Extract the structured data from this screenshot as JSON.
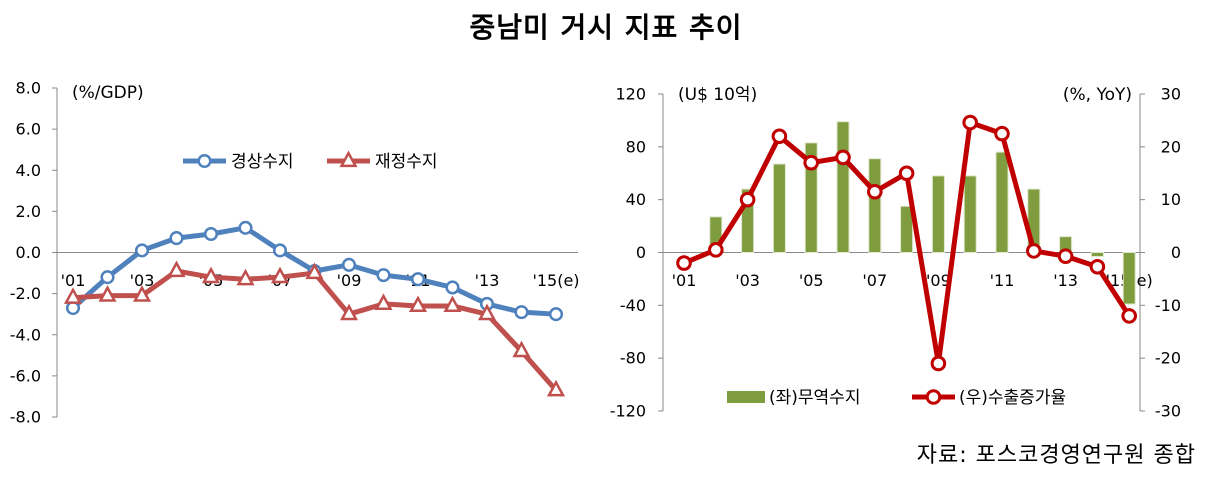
{
  "title": "중남미 거시 지표 추이",
  "source": "자료: 포스코경영연구원 종합",
  "chart_data": [
    {
      "type": "line",
      "unit_label": "(%/GDP)",
      "x": [
        2001,
        2002,
        2003,
        2004,
        2005,
        2006,
        2007,
        2008,
        2009,
        2010,
        2011,
        2012,
        2013,
        2014,
        2015
      ],
      "x_tick_values": [
        2001,
        2003,
        2005,
        2007,
        2009,
        2011,
        2013,
        2015
      ],
      "x_tick_labels": [
        "'01",
        "'03",
        "'05",
        "'07",
        "'09",
        "'11",
        "'13",
        "'15(e)"
      ],
      "ylim": [
        -8,
        8
      ],
      "y_tick_labels": [
        "8.0",
        "6.0",
        "4.0",
        "2.0",
        "0.0",
        "-2.0",
        "-4.0",
        "-6.0",
        "-8.0"
      ],
      "grid": false,
      "legend": "top-center",
      "series": [
        {
          "name": "경상수지",
          "color": "#4f81bd",
          "marker": "circle",
          "values": [
            -2.7,
            -1.2,
            0.1,
            0.7,
            0.9,
            1.2,
            0.1,
            -0.9,
            -0.6,
            -1.1,
            -1.3,
            -1.7,
            -2.5,
            -2.9,
            -3.0
          ]
        },
        {
          "name": "재정수지",
          "color": "#c0504d",
          "marker": "triangle",
          "values": [
            -2.2,
            -2.1,
            -2.1,
            -0.9,
            -1.2,
            -1.3,
            -1.2,
            -1.0,
            -3.0,
            -2.5,
            -2.6,
            -2.6,
            -3.0,
            -4.8,
            -6.7
          ]
        }
      ]
    },
    {
      "type": "bar+line",
      "unit_label_left": "(U$ 10억)",
      "unit_label_right": "(%, YoY)",
      "x": [
        2001,
        2002,
        2003,
        2004,
        2005,
        2006,
        2007,
        2008,
        2009,
        2010,
        2011,
        2012,
        2013,
        2014,
        2015
      ],
      "x_tick_values": [
        2001,
        2003,
        2005,
        2007,
        2009,
        2011,
        2013,
        2015
      ],
      "x_tick_labels": [
        "'01",
        "'03",
        "'05",
        "'07",
        "'09",
        "'11",
        "'13",
        "'15(e)"
      ],
      "ylim_left": [
        -120,
        120
      ],
      "ylim_right": [
        -30,
        30
      ],
      "y_tick_labels_left": [
        "120",
        "80",
        "40",
        "0",
        "-40",
        "-80",
        "-120"
      ],
      "y_tick_labels_right": [
        "30",
        "20",
        "10",
        "0",
        "-10",
        "-20",
        "-30"
      ],
      "grid": false,
      "legend": "bottom-center",
      "series": [
        {
          "name": "(좌)무역수지",
          "type": "bar",
          "axis": "left",
          "color": "#7f9c3f",
          "values": [
            0,
            27,
            48,
            67,
            83,
            99,
            71,
            35,
            58,
            58,
            76,
            48,
            12,
            -3,
            -39
          ]
        },
        {
          "name": "(우)수출증가율",
          "type": "line",
          "axis": "right",
          "color": "#c00000",
          "marker": "circle",
          "values": [
            -2.0,
            0.5,
            10.0,
            22.0,
            17.0,
            18.0,
            11.5,
            15.0,
            -21.0,
            24.6,
            22.5,
            0.3,
            -0.7,
            -2.7,
            -12.0
          ]
        }
      ]
    }
  ]
}
